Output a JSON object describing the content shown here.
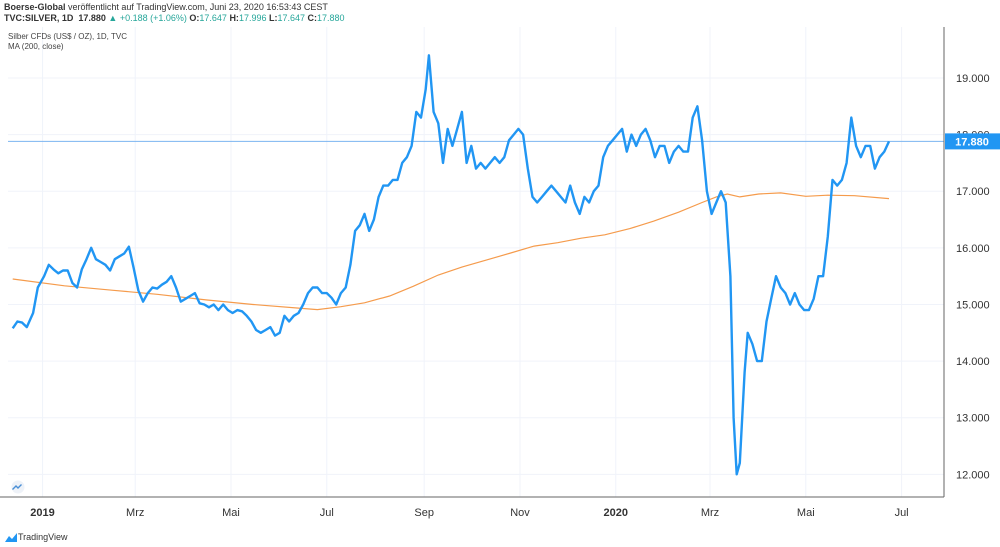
{
  "header": {
    "publisher": "Boerse-Global",
    "published_text": "veröffentlicht auf TradingView.com, Juni 23, 2020 16:53:43 CEST",
    "symbol": "TVC:SILVER, 1D",
    "last": "17.880",
    "change": "▲ +0.188 (+1.06%)",
    "o_label": "O:",
    "o_value": "17.647",
    "h_label": "H:",
    "h_value": "17.996",
    "l_label": "L:",
    "l_value": "17.647",
    "c_label": "C:",
    "c_value": "17.880"
  },
  "legend": {
    "series_title": "Silber CFDs (US$ / OZ), 1D, TVC",
    "indicator": "MA (200, close)"
  },
  "footer": {
    "brand": "TradingView",
    "logo_icon": "tradingview-logo-icon"
  },
  "colors": {
    "price": "#2196f3",
    "ma": "#f59b4c",
    "grid": "#f0f3fa",
    "current_line": "#7bb5f0",
    "badge": "#2196f3"
  },
  "chart_data": {
    "type": "line",
    "title": "Silber CFDs (US$ / OZ), 1D, TVC",
    "ylim": [
      11.6,
      19.9
    ],
    "x_range": [
      "2018-12-10",
      "2020-07-28"
    ],
    "current_value": 17.88,
    "current_label": "17.880",
    "y_ticks": [
      12,
      13,
      14,
      15,
      16,
      17,
      18,
      19
    ],
    "y_tick_labels": [
      "12.000",
      "13.000",
      "14.000",
      "15.000",
      "16.000",
      "17.000",
      "18.000",
      "19.000"
    ],
    "x_ticks": [
      {
        "date": "2019-01-01",
        "label": "2019",
        "bold": true
      },
      {
        "date": "2019-03-01",
        "label": "Mrz",
        "bold": false
      },
      {
        "date": "2019-05-01",
        "label": "Mai",
        "bold": false
      },
      {
        "date": "2019-07-01",
        "label": "Jul",
        "bold": false
      },
      {
        "date": "2019-09-01",
        "label": "Sep",
        "bold": false
      },
      {
        "date": "2019-11-01",
        "label": "Nov",
        "bold": false
      },
      {
        "date": "2020-01-01",
        "label": "2020",
        "bold": true
      },
      {
        "date": "2020-03-01",
        "label": "Mrz",
        "bold": false
      },
      {
        "date": "2020-05-01",
        "label": "Mai",
        "bold": false
      },
      {
        "date": "2020-07-01",
        "label": "Jul",
        "bold": false
      }
    ],
    "series": [
      {
        "name": "Silber CFDs (US$ / OZ)",
        "points": [
          [
            "2018-12-13",
            14.58
          ],
          [
            "2018-12-16",
            14.7
          ],
          [
            "2018-12-19",
            14.68
          ],
          [
            "2018-12-22",
            14.6
          ],
          [
            "2018-12-26",
            14.85
          ],
          [
            "2018-12-29",
            15.3
          ],
          [
            "2019-01-02",
            15.5
          ],
          [
            "2019-01-05",
            15.7
          ],
          [
            "2019-01-08",
            15.62
          ],
          [
            "2019-01-11",
            15.55
          ],
          [
            "2019-01-14",
            15.6
          ],
          [
            "2019-01-17",
            15.6
          ],
          [
            "2019-01-20",
            15.38
          ],
          [
            "2019-01-23",
            15.3
          ],
          [
            "2019-01-26",
            15.62
          ],
          [
            "2019-01-29",
            15.8
          ],
          [
            "2019-02-01",
            16.0
          ],
          [
            "2019-02-04",
            15.8
          ],
          [
            "2019-02-07",
            15.75
          ],
          [
            "2019-02-10",
            15.7
          ],
          [
            "2019-02-13",
            15.6
          ],
          [
            "2019-02-16",
            15.8
          ],
          [
            "2019-02-19",
            15.85
          ],
          [
            "2019-02-22",
            15.9
          ],
          [
            "2019-02-25",
            16.02
          ],
          [
            "2019-02-28",
            15.65
          ],
          [
            "2019-03-03",
            15.25
          ],
          [
            "2019-03-06",
            15.05
          ],
          [
            "2019-03-09",
            15.2
          ],
          [
            "2019-03-12",
            15.3
          ],
          [
            "2019-03-15",
            15.28
          ],
          [
            "2019-03-18",
            15.35
          ],
          [
            "2019-03-21",
            15.4
          ],
          [
            "2019-03-24",
            15.5
          ],
          [
            "2019-03-27",
            15.3
          ],
          [
            "2019-03-30",
            15.05
          ],
          [
            "2019-04-02",
            15.1
          ],
          [
            "2019-04-05",
            15.15
          ],
          [
            "2019-04-08",
            15.2
          ],
          [
            "2019-04-11",
            15.02
          ],
          [
            "2019-04-14",
            15.0
          ],
          [
            "2019-04-17",
            14.95
          ],
          [
            "2019-04-20",
            15.0
          ],
          [
            "2019-04-23",
            14.9
          ],
          [
            "2019-04-26",
            15.0
          ],
          [
            "2019-04-29",
            14.9
          ],
          [
            "2019-05-02",
            14.85
          ],
          [
            "2019-05-05",
            14.9
          ],
          [
            "2019-05-08",
            14.88
          ],
          [
            "2019-05-11",
            14.8
          ],
          [
            "2019-05-14",
            14.7
          ],
          [
            "2019-05-17",
            14.55
          ],
          [
            "2019-05-20",
            14.5
          ],
          [
            "2019-05-23",
            14.55
          ],
          [
            "2019-05-26",
            14.6
          ],
          [
            "2019-05-29",
            14.45
          ],
          [
            "2019-06-01",
            14.5
          ],
          [
            "2019-06-04",
            14.8
          ],
          [
            "2019-06-07",
            14.7
          ],
          [
            "2019-06-10",
            14.8
          ],
          [
            "2019-06-13",
            14.85
          ],
          [
            "2019-06-16",
            15.0
          ],
          [
            "2019-06-19",
            15.2
          ],
          [
            "2019-06-22",
            15.3
          ],
          [
            "2019-06-25",
            15.3
          ],
          [
            "2019-06-28",
            15.2
          ],
          [
            "2019-07-01",
            15.2
          ],
          [
            "2019-07-04",
            15.12
          ],
          [
            "2019-07-07",
            15.0
          ],
          [
            "2019-07-10",
            15.2
          ],
          [
            "2019-07-13",
            15.3
          ],
          [
            "2019-07-16",
            15.7
          ],
          [
            "2019-07-19",
            16.3
          ],
          [
            "2019-07-22",
            16.4
          ],
          [
            "2019-07-25",
            16.6
          ],
          [
            "2019-07-28",
            16.3
          ],
          [
            "2019-07-31",
            16.5
          ],
          [
            "2019-08-03",
            16.9
          ],
          [
            "2019-08-06",
            17.1
          ],
          [
            "2019-08-09",
            17.1
          ],
          [
            "2019-08-12",
            17.2
          ],
          [
            "2019-08-15",
            17.2
          ],
          [
            "2019-08-18",
            17.5
          ],
          [
            "2019-08-21",
            17.6
          ],
          [
            "2019-08-24",
            17.8
          ],
          [
            "2019-08-27",
            18.4
          ],
          [
            "2019-08-30",
            18.3
          ],
          [
            "2019-09-02",
            18.8
          ],
          [
            "2019-09-04",
            19.4
          ],
          [
            "2019-09-07",
            18.4
          ],
          [
            "2019-09-10",
            18.2
          ],
          [
            "2019-09-13",
            17.5
          ],
          [
            "2019-09-16",
            18.1
          ],
          [
            "2019-09-19",
            17.8
          ],
          [
            "2019-09-22",
            18.1
          ],
          [
            "2019-09-25",
            18.4
          ],
          [
            "2019-09-28",
            17.5
          ],
          [
            "2019-10-01",
            17.8
          ],
          [
            "2019-10-04",
            17.4
          ],
          [
            "2019-10-07",
            17.5
          ],
          [
            "2019-10-10",
            17.4
          ],
          [
            "2019-10-13",
            17.5
          ],
          [
            "2019-10-16",
            17.6
          ],
          [
            "2019-10-19",
            17.5
          ],
          [
            "2019-10-22",
            17.6
          ],
          [
            "2019-10-25",
            17.9
          ],
          [
            "2019-10-28",
            18.0
          ],
          [
            "2019-10-31",
            18.1
          ],
          [
            "2019-11-03",
            18.0
          ],
          [
            "2019-11-06",
            17.4
          ],
          [
            "2019-11-09",
            16.9
          ],
          [
            "2019-11-12",
            16.8
          ],
          [
            "2019-11-15",
            16.9
          ],
          [
            "2019-11-18",
            17.0
          ],
          [
            "2019-11-21",
            17.1
          ],
          [
            "2019-11-24",
            17.0
          ],
          [
            "2019-11-27",
            16.9
          ],
          [
            "2019-11-30",
            16.8
          ],
          [
            "2019-12-03",
            17.1
          ],
          [
            "2019-12-06",
            16.8
          ],
          [
            "2019-12-09",
            16.6
          ],
          [
            "2019-12-12",
            16.9
          ],
          [
            "2019-12-15",
            16.8
          ],
          [
            "2019-12-18",
            17.0
          ],
          [
            "2019-12-21",
            17.1
          ],
          [
            "2019-12-24",
            17.6
          ],
          [
            "2019-12-27",
            17.8
          ],
          [
            "2019-12-30",
            17.9
          ],
          [
            "2020-01-02",
            18.0
          ],
          [
            "2020-01-05",
            18.1
          ],
          [
            "2020-01-08",
            17.7
          ],
          [
            "2020-01-11",
            18.0
          ],
          [
            "2020-01-14",
            17.8
          ],
          [
            "2020-01-17",
            18.0
          ],
          [
            "2020-01-20",
            18.1
          ],
          [
            "2020-01-23",
            17.9
          ],
          [
            "2020-01-26",
            17.6
          ],
          [
            "2020-01-29",
            17.8
          ],
          [
            "2020-02-01",
            17.8
          ],
          [
            "2020-02-04",
            17.5
          ],
          [
            "2020-02-07",
            17.7
          ],
          [
            "2020-02-10",
            17.8
          ],
          [
            "2020-02-13",
            17.7
          ],
          [
            "2020-02-16",
            17.7
          ],
          [
            "2020-02-19",
            18.3
          ],
          [
            "2020-02-22",
            18.5
          ],
          [
            "2020-02-25",
            17.9
          ],
          [
            "2020-02-28",
            17.0
          ],
          [
            "2020-03-02",
            16.6
          ],
          [
            "2020-03-05",
            16.8
          ],
          [
            "2020-03-08",
            17.0
          ],
          [
            "2020-03-11",
            16.8
          ],
          [
            "2020-03-14",
            15.5
          ],
          [
            "2020-03-16",
            13.0
          ],
          [
            "2020-03-18",
            12.0
          ],
          [
            "2020-03-20",
            12.2
          ],
          [
            "2020-03-23",
            13.8
          ],
          [
            "2020-03-25",
            14.5
          ],
          [
            "2020-03-28",
            14.3
          ],
          [
            "2020-03-31",
            14.0
          ],
          [
            "2020-04-03",
            14.0
          ],
          [
            "2020-04-06",
            14.7
          ],
          [
            "2020-04-09",
            15.1
          ],
          [
            "2020-04-12",
            15.5
          ],
          [
            "2020-04-15",
            15.3
          ],
          [
            "2020-04-18",
            15.2
          ],
          [
            "2020-04-21",
            15.0
          ],
          [
            "2020-04-24",
            15.2
          ],
          [
            "2020-04-27",
            15.0
          ],
          [
            "2020-04-30",
            14.9
          ],
          [
            "2020-05-03",
            14.9
          ],
          [
            "2020-05-06",
            15.1
          ],
          [
            "2020-05-09",
            15.5
          ],
          [
            "2020-05-12",
            15.5
          ],
          [
            "2020-05-15",
            16.2
          ],
          [
            "2020-05-18",
            17.2
          ],
          [
            "2020-05-21",
            17.1
          ],
          [
            "2020-05-24",
            17.2
          ],
          [
            "2020-05-27",
            17.5
          ],
          [
            "2020-05-30",
            18.3
          ],
          [
            "2020-06-02",
            17.8
          ],
          [
            "2020-06-05",
            17.6
          ],
          [
            "2020-06-08",
            17.8
          ],
          [
            "2020-06-11",
            17.8
          ],
          [
            "2020-06-14",
            17.4
          ],
          [
            "2020-06-17",
            17.6
          ],
          [
            "2020-06-20",
            17.7
          ],
          [
            "2020-06-23",
            17.88
          ]
        ]
      },
      {
        "name": "MA (200, close)",
        "points": [
          [
            "2018-12-13",
            15.45
          ],
          [
            "2019-01-15",
            15.33
          ],
          [
            "2019-02-15",
            15.25
          ],
          [
            "2019-03-15",
            15.18
          ],
          [
            "2019-04-15",
            15.08
          ],
          [
            "2019-05-15",
            15.0
          ],
          [
            "2019-06-15",
            14.93
          ],
          [
            "2019-06-25",
            14.91
          ],
          [
            "2019-07-10",
            14.96
          ],
          [
            "2019-07-25",
            15.03
          ],
          [
            "2019-08-10",
            15.15
          ],
          [
            "2019-08-25",
            15.32
          ],
          [
            "2019-09-10",
            15.52
          ],
          [
            "2019-09-25",
            15.66
          ],
          [
            "2019-10-10",
            15.78
          ],
          [
            "2019-10-25",
            15.9
          ],
          [
            "2019-11-10",
            16.03
          ],
          [
            "2019-11-25",
            16.09
          ],
          [
            "2019-12-10",
            16.17
          ],
          [
            "2019-12-25",
            16.23
          ],
          [
            "2020-01-10",
            16.34
          ],
          [
            "2020-01-25",
            16.47
          ],
          [
            "2020-02-10",
            16.63
          ],
          [
            "2020-02-25",
            16.8
          ],
          [
            "2020-03-05",
            16.9
          ],
          [
            "2020-03-12",
            16.95
          ],
          [
            "2020-03-20",
            16.9
          ],
          [
            "2020-04-01",
            16.95
          ],
          [
            "2020-04-15",
            16.97
          ],
          [
            "2020-05-01",
            16.91
          ],
          [
            "2020-05-15",
            16.93
          ],
          [
            "2020-06-01",
            16.92
          ],
          [
            "2020-06-23",
            16.87
          ]
        ]
      }
    ]
  }
}
